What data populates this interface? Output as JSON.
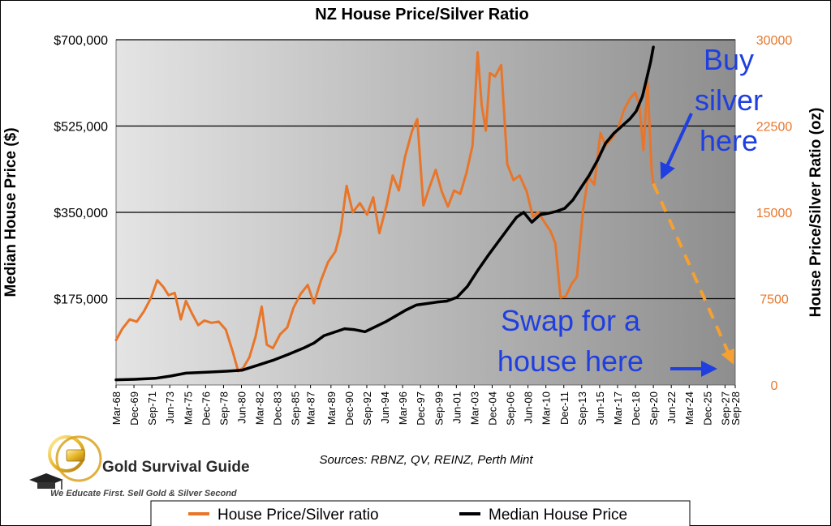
{
  "chart_data": {
    "type": "line",
    "title": "NZ House Price/Silver Ratio",
    "ylabel_left": "Median House Price ($)",
    "ylabel_right": "House Price/Silver Ratio (oz)",
    "ylim_left": [
      0,
      700000
    ],
    "ylim_right": [
      0,
      30000
    ],
    "yticks_left": [
      "$175,000",
      "$350,000",
      "$525,000",
      "$700,000"
    ],
    "yticks_left_values": [
      175000,
      350000,
      525000,
      700000
    ],
    "yticks_right": [
      "0",
      "7500",
      "15000",
      "22500",
      "30000"
    ],
    "yticks_right_values": [
      0,
      7500,
      15000,
      22500,
      30000
    ],
    "x_range": [
      1968.17,
      2028.67
    ],
    "x_ticks": [
      {
        "label": "Mar-68",
        "x": 1968.17
      },
      {
        "label": "Dec-69",
        "x": 1969.92
      },
      {
        "label": "Sep-71",
        "x": 1971.67
      },
      {
        "label": "Jun-73",
        "x": 1973.42
      },
      {
        "label": "Mar-75",
        "x": 1975.17
      },
      {
        "label": "Dec-76",
        "x": 1976.92
      },
      {
        "label": "Sep-78",
        "x": 1978.67
      },
      {
        "label": "Jun-80",
        "x": 1980.42
      },
      {
        "label": "Mar-82",
        "x": 1982.17
      },
      {
        "label": "Dec-83",
        "x": 1983.92
      },
      {
        "label": "Sep-85",
        "x": 1985.67
      },
      {
        "label": "Mar-87",
        "x": 1987.17
      },
      {
        "label": "Mar-89",
        "x": 1989.17
      },
      {
        "label": "Dec-90",
        "x": 1990.92
      },
      {
        "label": "Sep-92",
        "x": 1992.67
      },
      {
        "label": "Jun-94",
        "x": 1994.42
      },
      {
        "label": "Mar-96",
        "x": 1996.17
      },
      {
        "label": "Dec-97",
        "x": 1997.92
      },
      {
        "label": "Sep-99",
        "x": 1999.67
      },
      {
        "label": "Jun-01",
        "x": 2001.42
      },
      {
        "label": "Mar-03",
        "x": 2003.17
      },
      {
        "label": "Dec-04",
        "x": 2004.92
      },
      {
        "label": "Sep-06",
        "x": 2006.67
      },
      {
        "label": "Jun-08",
        "x": 2008.42
      },
      {
        "label": "Mar-10",
        "x": 2010.17
      },
      {
        "label": "Dec-11",
        "x": 2011.92
      },
      {
        "label": "Sep-13",
        "x": 2013.67
      },
      {
        "label": "Jun-15",
        "x": 2015.42
      },
      {
        "label": "Mar-17",
        "x": 2017.17
      },
      {
        "label": "Dec-18",
        "x": 2018.92
      },
      {
        "label": "Sep-20",
        "x": 2020.67
      },
      {
        "label": "Jun-22",
        "x": 2022.42
      },
      {
        "label": "Mar-24",
        "x": 2024.17
      },
      {
        "label": "Dec-25",
        "x": 2025.92
      },
      {
        "label": "Sep-27",
        "x": 2027.67
      },
      {
        "label": "Sep-28",
        "x": 2028.67
      }
    ],
    "grid": "horizontal",
    "legend_position": "bottom",
    "series": [
      {
        "name": "House Price/Silver ratio",
        "axis": "right",
        "color": "#e8762a",
        "points": [
          [
            1968.17,
            3900
          ],
          [
            1968.8,
            4900
          ],
          [
            1969.5,
            5700
          ],
          [
            1970.2,
            5500
          ],
          [
            1970.9,
            6400
          ],
          [
            1971.6,
            7600
          ],
          [
            1972.2,
            9100
          ],
          [
            1972.8,
            8500
          ],
          [
            1973.3,
            7800
          ],
          [
            1973.9,
            8000
          ],
          [
            1974.5,
            5700
          ],
          [
            1975.0,
            7300
          ],
          [
            1975.6,
            6200
          ],
          [
            1976.2,
            5200
          ],
          [
            1976.8,
            5600
          ],
          [
            1977.5,
            5400
          ],
          [
            1978.2,
            5500
          ],
          [
            1978.9,
            4800
          ],
          [
            1979.6,
            2800
          ],
          [
            1980.1,
            1200
          ],
          [
            1980.6,
            1500
          ],
          [
            1981.2,
            2400
          ],
          [
            1981.8,
            4200
          ],
          [
            1982.4,
            6800
          ],
          [
            1982.9,
            3500
          ],
          [
            1983.5,
            3200
          ],
          [
            1984.2,
            4400
          ],
          [
            1984.9,
            5000
          ],
          [
            1985.5,
            6700
          ],
          [
            1986.2,
            7900
          ],
          [
            1986.9,
            8700
          ],
          [
            1987.5,
            7100
          ],
          [
            1988.2,
            9100
          ],
          [
            1988.9,
            10700
          ],
          [
            1989.6,
            11600
          ],
          [
            1990.1,
            13300
          ],
          [
            1990.7,
            17300
          ],
          [
            1991.3,
            15000
          ],
          [
            1992.0,
            15800
          ],
          [
            1992.7,
            14800
          ],
          [
            1993.3,
            16300
          ],
          [
            1993.9,
            13200
          ],
          [
            1994.6,
            15600
          ],
          [
            1995.2,
            18200
          ],
          [
            1995.8,
            16900
          ],
          [
            1996.4,
            19800
          ],
          [
            1997.1,
            22100
          ],
          [
            1997.6,
            23100
          ],
          [
            1998.2,
            15600
          ],
          [
            1998.8,
            17200
          ],
          [
            1999.4,
            18700
          ],
          [
            2000.0,
            16800
          ],
          [
            2000.6,
            15500
          ],
          [
            2001.2,
            16900
          ],
          [
            2001.8,
            16600
          ],
          [
            2002.4,
            18400
          ],
          [
            2003.0,
            20800
          ],
          [
            2003.5,
            28900
          ],
          [
            2003.9,
            24300
          ],
          [
            2004.3,
            22100
          ],
          [
            2004.7,
            27100
          ],
          [
            2005.2,
            26800
          ],
          [
            2005.8,
            27800
          ],
          [
            2006.4,
            19200
          ],
          [
            2007.0,
            17800
          ],
          [
            2007.6,
            18200
          ],
          [
            2008.3,
            16800
          ],
          [
            2008.9,
            14600
          ],
          [
            2009.4,
            15000
          ],
          [
            2010.0,
            14200
          ],
          [
            2010.6,
            13400
          ],
          [
            2011.1,
            12300
          ],
          [
            2011.6,
            7600
          ],
          [
            2012.1,
            7700
          ],
          [
            2012.7,
            8800
          ],
          [
            2013.2,
            9400
          ],
          [
            2013.8,
            15200
          ],
          [
            2014.3,
            18100
          ],
          [
            2014.9,
            17400
          ],
          [
            2015.5,
            21900
          ],
          [
            2016.0,
            20800
          ],
          [
            2016.6,
            21400
          ],
          [
            2017.2,
            22200
          ],
          [
            2017.8,
            23900
          ],
          [
            2018.4,
            24900
          ],
          [
            2018.9,
            25400
          ],
          [
            2019.3,
            24300
          ],
          [
            2019.7,
            20400
          ],
          [
            2020.1,
            26300
          ],
          [
            2020.5,
            18600
          ],
          [
            2020.67,
            17500
          ]
        ]
      },
      {
        "name": "Median House Price",
        "axis": "left",
        "color": "#000000",
        "points": [
          [
            1968.17,
            10500
          ],
          [
            1970.0,
            11500
          ],
          [
            1972.0,
            13500
          ],
          [
            1973.5,
            18000
          ],
          [
            1975.0,
            24000
          ],
          [
            1977.0,
            26000
          ],
          [
            1979.0,
            28000
          ],
          [
            1980.5,
            30000
          ],
          [
            1982.0,
            40000
          ],
          [
            1983.5,
            50000
          ],
          [
            1985.0,
            62000
          ],
          [
            1986.5,
            75000
          ],
          [
            1987.5,
            85000
          ],
          [
            1988.5,
            100000
          ],
          [
            1989.5,
            107000
          ],
          [
            1990.5,
            114000
          ],
          [
            1991.5,
            112000
          ],
          [
            1992.5,
            108000
          ],
          [
            1993.5,
            118000
          ],
          [
            1994.5,
            128000
          ],
          [
            1995.5,
            140000
          ],
          [
            1996.5,
            152000
          ],
          [
            1997.5,
            162000
          ],
          [
            1998.5,
            165000
          ],
          [
            1999.5,
            168000
          ],
          [
            2000.5,
            170000
          ],
          [
            2001.5,
            178000
          ],
          [
            2002.5,
            200000
          ],
          [
            2003.5,
            232000
          ],
          [
            2004.5,
            262000
          ],
          [
            2005.5,
            290000
          ],
          [
            2006.5,
            318000
          ],
          [
            2007.3,
            340000
          ],
          [
            2008.0,
            350000
          ],
          [
            2008.8,
            330000
          ],
          [
            2009.6,
            345000
          ],
          [
            2010.4,
            348000
          ],
          [
            2011.2,
            352000
          ],
          [
            2012.0,
            358000
          ],
          [
            2012.8,
            375000
          ],
          [
            2013.6,
            400000
          ],
          [
            2014.4,
            425000
          ],
          [
            2015.2,
            455000
          ],
          [
            2016.0,
            490000
          ],
          [
            2016.8,
            510000
          ],
          [
            2017.6,
            525000
          ],
          [
            2018.4,
            540000
          ],
          [
            2019.0,
            555000
          ],
          [
            2019.6,
            585000
          ],
          [
            2020.0,
            620000
          ],
          [
            2020.4,
            655000
          ],
          [
            2020.67,
            685000
          ]
        ]
      }
    ],
    "projection": {
      "style": "dashed",
      "color": "#f5a031",
      "points": [
        [
          2020.67,
          17500
        ],
        [
          2028.4,
          2000
        ]
      ]
    },
    "annotations": [
      {
        "id": "buy",
        "text_lines": [
          "Buy",
          "silver",
          "here"
        ],
        "color": "#1f3fe0"
      },
      {
        "id": "swap",
        "text_lines": [
          "Swap for a",
          "house here"
        ],
        "color": "#1f3fe0"
      }
    ],
    "source": "Sources: RBNZ, QV, REINZ, Perth Mint"
  },
  "logo": {
    "name": "Gold Survival Guide",
    "tagline": "We Educate First. Sell Gold & Silver Second"
  },
  "legend": [
    {
      "label": "House Price/Silver ratio",
      "color": "#e8762a"
    },
    {
      "label": "Median House Price",
      "color": "#000000"
    }
  ]
}
